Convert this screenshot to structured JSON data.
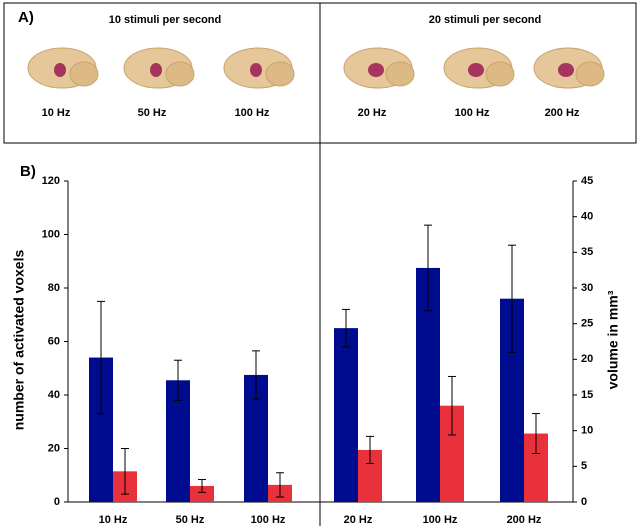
{
  "panel_a": {
    "label": "A)",
    "groups": [
      {
        "title": "10 stimuli per second",
        "stimuli": [
          "10 Hz",
          "50 Hz",
          "100 Hz"
        ]
      },
      {
        "title": "20 stimuli per second",
        "stimuli": [
          "20 Hz",
          "100 Hz",
          "200 Hz"
        ]
      }
    ]
  },
  "chart_data": {
    "type": "bar",
    "panel_label": "B)",
    "categories": [
      "10 Hz",
      "50 Hz",
      "100 Hz",
      "20 Hz",
      "100 Hz",
      "200 Hz"
    ],
    "ylabel": "number of activated voxels",
    "y2label": "volume in mm³",
    "ylim": [
      0,
      120
    ],
    "yticks": [
      0,
      20,
      40,
      60,
      80,
      100,
      120
    ],
    "y2lim": [
      0,
      45
    ],
    "y2ticks": [
      0,
      5,
      10,
      15,
      20,
      25,
      30,
      35,
      40,
      45
    ],
    "series": [
      {
        "color": "#000c8f",
        "values": [
          54,
          45.5,
          47.5,
          65,
          87.5,
          76
        ],
        "errors": [
          21,
          7.5,
          9,
          7,
          16,
          20
        ]
      },
      {
        "color": "#e8313a",
        "axis": "y2",
        "values": [
          4.3,
          2.25,
          2.4,
          7.3,
          13.5,
          9.6
        ],
        "errors": [
          3.2,
          0.9,
          1.7,
          1.9,
          4.1,
          2.8
        ]
      }
    ]
  }
}
